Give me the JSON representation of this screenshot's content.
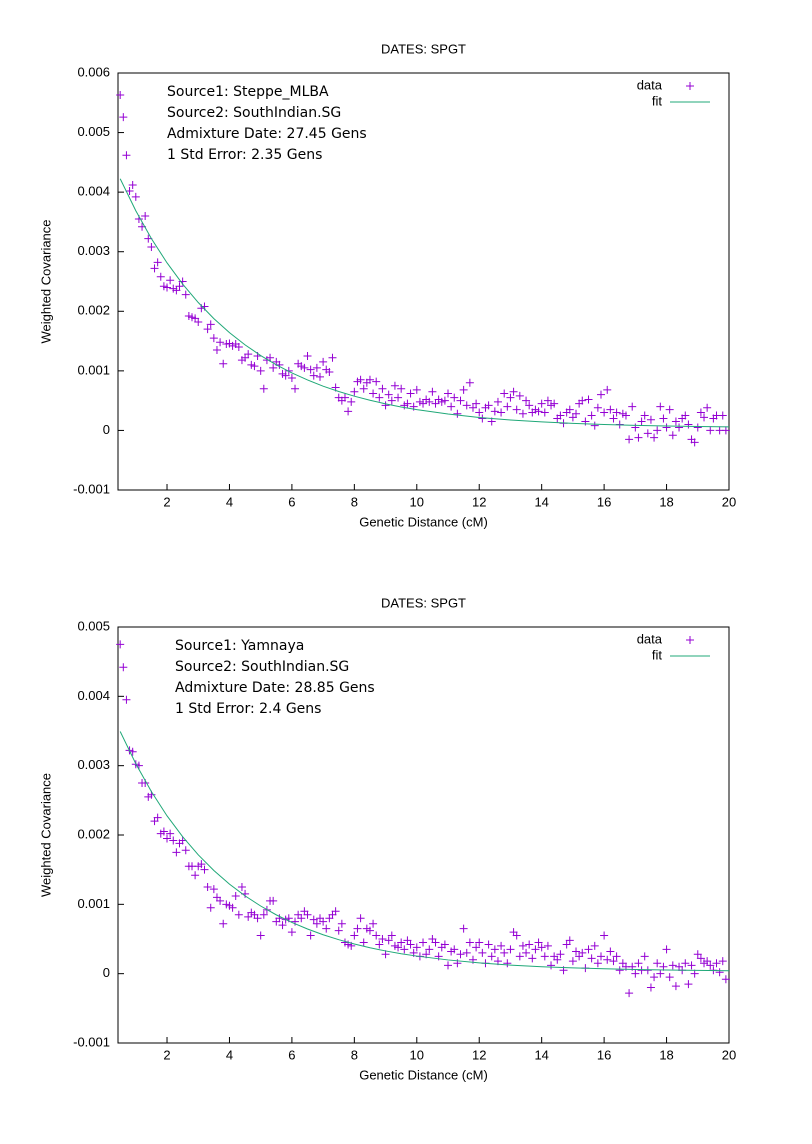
{
  "chart_data": [
    {
      "type": "scatter",
      "title": "DATES: SPGT",
      "xlabel": "Genetic Distance (cM)",
      "ylabel": "Weighted Covariance",
      "annotations": [
        "Source1: Steppe_MLBA",
        "Source2: SouthIndian.SG",
        "Admixture Date: 27.45 Gens",
        "1 Std Error: 2.35 Gens"
      ],
      "xlim": [
        0.43,
        20
      ],
      "ylim": [
        -0.001,
        0.006
      ],
      "xticks": [
        2,
        4,
        6,
        8,
        10,
        12,
        14,
        16,
        18,
        20
      ],
      "yticks": [
        -0.001,
        0,
        0.001,
        0.002,
        0.003,
        0.004,
        0.005,
        0.006
      ],
      "legend": "top right",
      "series": [
        {
          "name": "data",
          "color": "#9400d3",
          "style": "points",
          "x": [
            0.5,
            0.6,
            0.7,
            0.8,
            0.9,
            1.0,
            1.1,
            1.2,
            1.3,
            1.4,
            1.5,
            1.6,
            1.7,
            1.8,
            1.9,
            2.0,
            2.1,
            2.2,
            2.3,
            2.4,
            2.5,
            2.6,
            2.7,
            2.8,
            2.9,
            3.0,
            3.1,
            3.2,
            3.3,
            3.4,
            3.5,
            3.6,
            3.7,
            3.8,
            3.9,
            4.0,
            4.1,
            4.2,
            4.3,
            4.4,
            4.5,
            4.6,
            4.7,
            4.8,
            4.9,
            5.0,
            5.1,
            5.2,
            5.3,
            5.4,
            5.5,
            5.6,
            5.7,
            5.8,
            5.9,
            6.0,
            6.1,
            6.2,
            6.3,
            6.4,
            6.5,
            6.6,
            6.7,
            6.8,
            6.9,
            7.0,
            7.1,
            7.2,
            7.3,
            7.4,
            7.5,
            7.6,
            7.7,
            7.8,
            7.9,
            8.0,
            8.1,
            8.2,
            8.3,
            8.4,
            8.5,
            8.6,
            8.7,
            8.8,
            8.9,
            9.0,
            9.1,
            9.2,
            9.3,
            9.4,
            9.5,
            9.6,
            9.7,
            9.8,
            9.9,
            10.0,
            10.1,
            10.2,
            10.3,
            10.4,
            10.5,
            10.6,
            10.7,
            10.8,
            10.9,
            11.0,
            11.1,
            11.2,
            11.3,
            11.4,
            11.5,
            11.6,
            11.7,
            11.8,
            11.9,
            12.0,
            12.1,
            12.2,
            12.3,
            12.4,
            12.5,
            12.6,
            12.7,
            12.8,
            12.9,
            13.0,
            13.1,
            13.2,
            13.3,
            13.4,
            13.5,
            13.6,
            13.7,
            13.8,
            13.9,
            14.0,
            14.1,
            14.2,
            14.3,
            14.4,
            14.5,
            14.6,
            14.7,
            14.8,
            14.9,
            15.0,
            15.1,
            15.2,
            15.3,
            15.4,
            15.5,
            15.6,
            15.7,
            15.8,
            15.9,
            16.0,
            16.1,
            16.2,
            16.3,
            16.4,
            16.5,
            16.6,
            16.7,
            16.8,
            16.9,
            17.0,
            17.1,
            17.2,
            17.3,
            17.4,
            17.5,
            17.6,
            17.7,
            17.8,
            17.9,
            18.0,
            18.1,
            18.2,
            18.3,
            18.4,
            18.5,
            18.6,
            18.7,
            18.8,
            18.9,
            19.0,
            19.1,
            19.2,
            19.3,
            19.4,
            19.5,
            19.6,
            19.7,
            19.8,
            19.9
          ],
          "values": [
            0.00563,
            0.00526,
            0.00462,
            0.00402,
            0.00412,
            0.00392,
            0.00355,
            0.00342,
            0.0036,
            0.00322,
            0.00308,
            0.00272,
            0.00282,
            0.00258,
            0.00242,
            0.0024,
            0.00252,
            0.00238,
            0.00235,
            0.00242,
            0.0025,
            0.00228,
            0.00192,
            0.0019,
            0.00188,
            0.00182,
            0.00205,
            0.00208,
            0.0017,
            0.00178,
            0.00155,
            0.00135,
            0.00148,
            0.00112,
            0.00145,
            0.00146,
            0.00142,
            0.00145,
            0.0014,
            0.00118,
            0.00122,
            0.00128,
            0.0011,
            0.00108,
            0.00125,
            0.001,
            0.0007,
            0.00118,
            0.00122,
            0.00105,
            0.00115,
            0.0011,
            0.00095,
            0.00092,
            0.001,
            0.00088,
            0.0007,
            0.00112,
            0.00108,
            0.00105,
            0.00125,
            0.00102,
            0.00092,
            0.00105,
            0.0009,
            0.00115,
            0.00102,
            0.00098,
            0.00122,
            0.00072,
            0.00055,
            0.0005,
            0.00055,
            0.00032,
            0.00048,
            0.00065,
            0.00082,
            0.00085,
            0.0007,
            0.0008,
            0.00085,
            0.00062,
            0.00082,
            0.00055,
            0.0007,
            0.00042,
            0.0006,
            0.0005,
            0.00075,
            0.00055,
            0.0007,
            0.00042,
            0.00045,
            0.00062,
            0.0004,
            0.00068,
            0.00048,
            0.00045,
            0.00052,
            0.00048,
            0.00065,
            0.00045,
            0.00052,
            0.00048,
            0.0005,
            0.00062,
            0.0004,
            0.00055,
            0.00028,
            0.0005,
            0.00068,
            0.00042,
            0.0008,
            0.00038,
            0.00045,
            0.0003,
            0.0002,
            0.00038,
            0.00042,
            0.00015,
            0.00032,
            0.00048,
            0.0003,
            0.00062,
            0.0004,
            0.00055,
            0.00065,
            0.00035,
            0.00058,
            0.00028,
            0.0005,
            0.00042,
            0.0003,
            0.00035,
            0.00032,
            0.00045,
            0.0003,
            0.0005,
            0.00042,
            0.00045,
            0.0002,
            0.00025,
            0.00012,
            0.0003,
            0.00035,
            0.00022,
            0.00028,
            0.00045,
            0.0005,
            0.00015,
            0.00052,
            0.00025,
            8e-05,
            0.00038,
            0.0006,
            0.0003,
            0.00068,
            0.00035,
            0.0002,
            0.0003,
            0.0001,
            0.00028,
            0.00025,
            -0.00015,
            0.0004,
            5e-05,
            -0.00012,
            0.00015,
            0.00025,
            -5e-05,
            0.00018,
            -0.00012,
            0,
            0.0004,
            0.0002,
            5e-05,
            0.00035,
            -8e-05,
            0.00015,
            5e-05,
            0.0002,
            0.00025,
            0.0001,
            -0.00015,
            -0.0002,
            5e-05,
            0.0003,
            0.00022,
            0.00038,
            0,
            0.0002,
            0.00025,
            0,
            0.00025,
            0
          ]
        },
        {
          "name": "fit",
          "color": "#20a878",
          "style": "line",
          "x": [
            0.5,
            1,
            1.5,
            2,
            2.5,
            3,
            3.5,
            4,
            4.5,
            5,
            5.5,
            6,
            6.5,
            7,
            7.5,
            8,
            8.5,
            9,
            9.5,
            10,
            11,
            12,
            13,
            14,
            15,
            16,
            17,
            18,
            19,
            20
          ],
          "values": [
            0.004225,
            0.003688,
            0.00322,
            0.002813,
            0.002457,
            0.002147,
            0.001877,
            0.001642,
            0.001436,
            0.001257,
            0.001101,
            0.000965,
            0.000847,
            0.000743,
            0.000653,
            0.000575,
            0.000506,
            0.000446,
            0.000394,
            0.000349,
            0.000275,
            0.000218,
            0.000175,
            0.000143,
            0.000118,
            0.0001,
            8.5e-05,
            7.5e-05,
            6.6e-05,
            6e-05
          ]
        }
      ]
    },
    {
      "type": "scatter",
      "title": "DATES: SPGT",
      "xlabel": "Genetic Distance (cM)",
      "ylabel": "Weighted Covariance",
      "annotations": [
        "Source1: Yamnaya",
        "Source2: SouthIndian.SG",
        "Admixture Date: 28.85 Gens",
        "1 Std Error: 2.4 Gens"
      ],
      "xlim": [
        0.43,
        20
      ],
      "ylim": [
        -0.001,
        0.005
      ],
      "xticks": [
        2,
        4,
        6,
        8,
        10,
        12,
        14,
        16,
        18,
        20
      ],
      "yticks": [
        -0.001,
        0,
        0.001,
        0.002,
        0.003,
        0.004,
        0.005
      ],
      "legend": "top right",
      "series": [
        {
          "name": "data",
          "color": "#9400d3",
          "style": "points",
          "x": [
            0.5,
            0.6,
            0.7,
            0.8,
            0.9,
            1.0,
            1.1,
            1.2,
            1.3,
            1.4,
            1.5,
            1.6,
            1.7,
            1.8,
            1.9,
            2.0,
            2.1,
            2.2,
            2.3,
            2.4,
            2.5,
            2.6,
            2.7,
            2.8,
            2.9,
            3.0,
            3.1,
            3.2,
            3.3,
            3.4,
            3.5,
            3.6,
            3.7,
            3.8,
            3.9,
            4.0,
            4.1,
            4.2,
            4.3,
            4.4,
            4.5,
            4.6,
            4.7,
            4.8,
            4.9,
            5.0,
            5.1,
            5.2,
            5.3,
            5.4,
            5.5,
            5.6,
            5.7,
            5.8,
            5.9,
            6.0,
            6.1,
            6.2,
            6.3,
            6.4,
            6.5,
            6.6,
            6.7,
            6.8,
            6.9,
            7.0,
            7.1,
            7.2,
            7.3,
            7.4,
            7.5,
            7.6,
            7.7,
            7.8,
            7.9,
            8.0,
            8.1,
            8.2,
            8.3,
            8.4,
            8.5,
            8.6,
            8.7,
            8.8,
            8.9,
            9.0,
            9.1,
            9.2,
            9.3,
            9.4,
            9.5,
            9.6,
            9.7,
            9.8,
            9.9,
            10.0,
            10.1,
            10.2,
            10.3,
            10.4,
            10.5,
            10.6,
            10.7,
            10.8,
            10.9,
            11.0,
            11.1,
            11.2,
            11.3,
            11.4,
            11.5,
            11.6,
            11.7,
            11.8,
            11.9,
            12.0,
            12.1,
            12.2,
            12.3,
            12.4,
            12.5,
            12.6,
            12.7,
            12.8,
            12.9,
            13.0,
            13.1,
            13.2,
            13.3,
            13.4,
            13.5,
            13.6,
            13.7,
            13.8,
            13.9,
            14.0,
            14.1,
            14.2,
            14.3,
            14.4,
            14.5,
            14.6,
            14.7,
            14.8,
            14.9,
            15.0,
            15.1,
            15.2,
            15.3,
            15.4,
            15.5,
            15.6,
            15.7,
            15.8,
            15.9,
            16.0,
            16.1,
            16.2,
            16.3,
            16.4,
            16.5,
            16.6,
            16.7,
            16.8,
            16.9,
            17.0,
            17.1,
            17.2,
            17.3,
            17.4,
            17.5,
            17.6,
            17.7,
            17.8,
            17.9,
            18.0,
            18.1,
            18.2,
            18.3,
            18.4,
            18.5,
            18.6,
            18.7,
            18.8,
            18.9,
            19.0,
            19.1,
            19.2,
            19.3,
            19.4,
            19.5,
            19.6,
            19.7,
            19.8,
            19.9
          ],
          "values": [
            0.00475,
            0.00442,
            0.00395,
            0.00322,
            0.0032,
            0.00302,
            0.003,
            0.00275,
            0.00275,
            0.00255,
            0.00258,
            0.0022,
            0.00225,
            0.00202,
            0.00205,
            0.00195,
            0.00202,
            0.00192,
            0.00175,
            0.00188,
            0.00192,
            0.00178,
            0.00155,
            0.00155,
            0.00142,
            0.00155,
            0.00158,
            0.0015,
            0.00125,
            0.00095,
            0.00122,
            0.0011,
            0.00105,
            0.00072,
            0.001,
            0.00098,
            0.00095,
            0.00112,
            0.00085,
            0.00125,
            0.00115,
            0.00082,
            0.00088,
            0.00085,
            0.0008,
            0.00055,
            0.00085,
            0.00092,
            0.00105,
            0.00105,
            0.00075,
            0.0008,
            0.0007,
            0.00078,
            0.0008,
            0.0006,
            0.00075,
            0.00085,
            0.0008,
            0.0009,
            0.00085,
            0.00055,
            0.00078,
            0.00072,
            0.0008,
            0.00075,
            0.00065,
            0.0008,
            0.00085,
            0.0009,
            0.00062,
            0.00072,
            0.00045,
            0.00042,
            0.0004,
            0.00055,
            0.00065,
            0.0008,
            0.00045,
            0.00065,
            0.00062,
            0.00072,
            0.00055,
            0.00042,
            0.0005,
            0.00028,
            0.00048,
            0.00055,
            0.0004,
            0.00038,
            0.00045,
            0.00035,
            0.00048,
            0.00042,
            0.0003,
            0.00038,
            0.00025,
            0.00045,
            0.00028,
            0.00035,
            0.0005,
            0.00045,
            0.00025,
            0.00038,
            0.00042,
            0.00012,
            0.00032,
            0.00035,
            0.00015,
            0.00028,
            0.00065,
            0.0003,
            0.00045,
            0.0002,
            0.00038,
            0.00045,
            0.0003,
            0.00015,
            0.00042,
            0.00025,
            0.00035,
            0.00018,
            0.0004,
            0.0003,
            0.00015,
            0.00035,
            0.0006,
            0.00055,
            0.00025,
            0.0004,
            0.0003,
            0.00042,
            0.00022,
            0.00035,
            0.00045,
            0.00038,
            0.00025,
            0.0004,
            0.00012,
            0.00025,
            0.0002,
            0.00028,
            5e-05,
            0.00042,
            0.00048,
            0.00018,
            0.00032,
            0.00025,
            0.0003,
            8e-05,
            0.00035,
            0.00022,
            0.0004,
            0.00015,
            0.00025,
            0.00055,
            0.0002,
            0.00032,
            0.00018,
            0.00025,
            5e-05,
            0.00015,
            0.0001,
            -0.00028,
            0.0001,
            0,
            0.00015,
            5e-05,
            0.00025,
            5e-05,
            -0.0002,
            -5e-05,
            0.00015,
            0,
            0.0001,
            0.00035,
            -5e-05,
            0.00012,
            -0.00018,
            0.0001,
            5e-05,
            0.00015,
            -0.00015,
            0.00012,
            0,
            0.00028,
            0.00022,
            0.00015,
            0.00018,
            0.00012,
            5e-05,
            0.00015,
            2e-05,
            0.00018,
            -8e-05
          ]
        },
        {
          "name": "fit",
          "color": "#20a878",
          "style": "line",
          "x": [
            0.5,
            1,
            1.5,
            2,
            2.5,
            3,
            3.5,
            4,
            4.5,
            5,
            5.5,
            6,
            6.5,
            7,
            7.5,
            8,
            8.5,
            9,
            9.5,
            10,
            11,
            12,
            13,
            14,
            15,
            16,
            17,
            18,
            19,
            20
          ],
          "values": [
            0.003493,
            0.003028,
            0.002625,
            0.002276,
            0.001975,
            0.001714,
            0.001488,
            0.001292,
            0.001122,
            0.000976,
            0.000848,
            0.000739,
            0.000644,
            0.000561,
            0.00049,
            0.000428,
            0.000374,
            0.000328,
            0.000288,
            0.000254,
            0.000198,
            0.000156,
            0.000124,
            0.0001,
            8.3e-05,
            7e-05,
            6e-05,
            5.2e-05,
            4.7e-05,
            4.2e-05
          ]
        }
      ]
    }
  ]
}
